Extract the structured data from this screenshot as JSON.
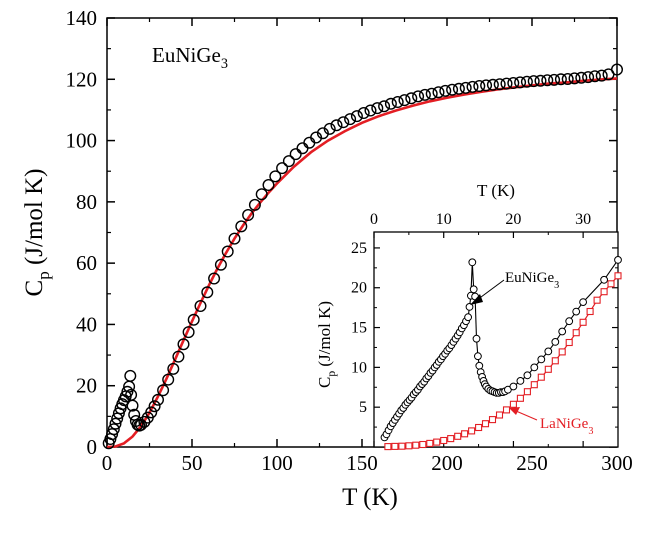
{
  "chart_data": [
    {
      "type": "scatter",
      "annotation": "EuNiGe3",
      "xlabel": "T (K)",
      "ylabel": "Cp (J/mol K)",
      "xlim": [
        0,
        300
      ],
      "ylim": [
        0,
        140
      ],
      "xticks": [
        0,
        50,
        100,
        150,
        200,
        250,
        300
      ],
      "yticks": [
        0,
        20,
        40,
        60,
        80,
        100,
        120,
        140
      ],
      "series": [
        {
          "marker": "open-circle",
          "color": "#000000",
          "x": [
            1,
            2,
            3,
            4,
            5,
            6,
            7,
            8,
            9,
            10,
            11,
            12,
            13,
            13.7,
            14.2,
            15,
            16,
            17,
            18,
            19,
            20,
            22,
            24,
            26,
            28,
            30,
            33,
            36,
            39,
            42,
            45,
            48,
            51,
            55,
            59,
            63,
            67,
            71,
            75,
            79,
            83,
            87,
            91,
            95,
            99,
            103,
            107,
            111,
            115,
            119,
            123,
            127,
            131,
            135,
            139,
            143,
            147,
            151,
            155,
            159,
            163,
            167,
            171,
            175,
            179,
            183,
            187,
            191,
            195,
            199,
            203,
            207,
            211,
            215,
            219,
            223,
            227,
            231,
            235,
            239,
            243,
            247,
            251,
            255,
            259,
            263,
            267,
            271,
            275,
            279,
            283,
            287,
            291,
            295,
            300
          ],
          "y": [
            1.2,
            2.6,
            4.2,
            5.8,
            7.6,
            9.3,
            11,
            12.6,
            14,
            15.3,
            16.5,
            18,
            19.7,
            23.2,
            17,
            13.5,
            10.5,
            8.5,
            7.3,
            7,
            7.2,
            8.2,
            9.6,
            11.3,
            13.3,
            15.4,
            18.5,
            22,
            25.5,
            29.5,
            33.5,
            37.5,
            41.5,
            46,
            50.5,
            55,
            59.5,
            63.8,
            68,
            72,
            75.7,
            79,
            82.5,
            85.5,
            88.3,
            91,
            93.3,
            95.6,
            97.5,
            99.3,
            101,
            102.4,
            103.8,
            105,
            106,
            107,
            108,
            109,
            109.8,
            110.6,
            111.2,
            112,
            112.6,
            113.2,
            113.8,
            114.4,
            114.9,
            115.3,
            115.8,
            116.2,
            116.6,
            116.9,
            117.2,
            117.5,
            117.8,
            118,
            118.2,
            118.4,
            118.6,
            118.8,
            119,
            119.2,
            119.4,
            119.5,
            119.7,
            119.8,
            120,
            120.1,
            120.3,
            120.5,
            120.7,
            121,
            121.2,
            121.6,
            123.2
          ]
        },
        {
          "marker": "line",
          "color": "#e31e24",
          "x": [
            0,
            5,
            10,
            15,
            20,
            25,
            30,
            35,
            40,
            45,
            50,
            55,
            60,
            65,
            70,
            75,
            80,
            85,
            90,
            95,
            100,
            110,
            120,
            130,
            140,
            150,
            160,
            170,
            180,
            190,
            200,
            210,
            220,
            230,
            240,
            250,
            260,
            270,
            280,
            290,
            300
          ],
          "y": [
            0,
            0.15,
            1.2,
            3.4,
            6.8,
            11.2,
            16.5,
            22.3,
            28.5,
            34.8,
            41,
            47,
            52.8,
            58.3,
            63.3,
            68,
            72.3,
            76.2,
            79.7,
            83,
            86,
            91.5,
            96.2,
            100,
            103.1,
            105.8,
            108,
            109.8,
            111.4,
            112.8,
            114,
            115,
            115.9,
            116.7,
            117.4,
            118,
            118.6,
            119,
            119.5,
            119.9,
            120.3
          ]
        }
      ]
    },
    {
      "type": "line",
      "xlabel": "T (K)",
      "ylabel": "Cp (J/mol K)",
      "xlim": [
        0,
        35
      ],
      "ylim": [
        0,
        27
      ],
      "xticks": [
        0,
        10,
        20,
        30
      ],
      "yticks": [
        5,
        10,
        15,
        20,
        25
      ],
      "series": [
        {
          "name": "EuNiGe3",
          "marker": "open-circle",
          "color": "#000000",
          "x": [
            1.5,
            1.8,
            2.1,
            2.4,
            2.7,
            3.0,
            3.3,
            3.6,
            3.9,
            4.2,
            4.5,
            4.8,
            5.1,
            5.4,
            5.7,
            6.0,
            6.3,
            6.6,
            6.9,
            7.2,
            7.5,
            7.8,
            8.1,
            8.4,
            8.7,
            9.0,
            9.3,
            9.6,
            9.9,
            10.2,
            10.5,
            10.8,
            11.1,
            11.4,
            11.7,
            12.0,
            12.3,
            12.6,
            12.9,
            13.2,
            13.5,
            13.7,
            13.9,
            14.1,
            14.3,
            14.5,
            14.7,
            14.9,
            15.1,
            15.3,
            15.5,
            15.7,
            15.9,
            16.1,
            16.4,
            16.7,
            17.0,
            17.3,
            17.6,
            17.9,
            18.2,
            18.5,
            18.8,
            19.2,
            20,
            21,
            22,
            23,
            24,
            25,
            26,
            27,
            28,
            29,
            30,
            33,
            35
          ],
          "y": [
            1.2,
            1.6,
            2.1,
            2.6,
            3.0,
            3.4,
            3.8,
            4.2,
            4.6,
            4.9,
            5.3,
            5.6,
            5.9,
            6.2,
            6.6,
            6.9,
            7.2,
            7.6,
            7.9,
            8.2,
            8.6,
            8.9,
            9.3,
            9.6,
            10.0,
            10.3,
            10.7,
            11.0,
            11.4,
            11.7,
            12.1,
            12.4,
            12.8,
            13.2,
            13.6,
            14.0,
            14.4,
            14.9,
            15.3,
            15.8,
            16.3,
            17.6,
            19.0,
            23.2,
            19.8,
            18.9,
            13.6,
            11.4,
            10.2,
            9.4,
            8.8,
            8.3,
            7.9,
            7.6,
            7.3,
            7.1,
            7.0,
            6.9,
            6.8,
            6.8,
            6.9,
            6.9,
            7.0,
            7.2,
            7.6,
            8.3,
            9.0,
            10.0,
            11.0,
            12.0,
            13.2,
            14.5,
            15.8,
            17.0,
            18.2,
            21.0,
            23.5
          ]
        },
        {
          "name": "LaNiGe3",
          "marker": "open-square",
          "color": "#e31e24",
          "x": [
            2,
            3,
            4,
            5,
            6,
            7,
            8,
            9,
            10,
            11,
            12,
            13,
            14,
            15,
            16,
            17,
            18,
            19,
            20,
            21,
            22,
            23,
            24,
            25,
            26,
            27,
            28,
            29,
            30,
            31,
            32,
            33,
            34,
            35
          ],
          "y": [
            0.05,
            0.07,
            0.1,
            0.15,
            0.22,
            0.32,
            0.45,
            0.62,
            0.82,
            1.06,
            1.34,
            1.66,
            2.02,
            2.45,
            2.92,
            3.44,
            4.02,
            4.66,
            5.36,
            6.12,
            6.94,
            7.82,
            8.76,
            9.76,
            10.82,
            11.94,
            13.12,
            14.36,
            15.66,
            17.02,
            18.44,
            19.5,
            20.5,
            21.5
          ]
        }
      ]
    }
  ]
}
